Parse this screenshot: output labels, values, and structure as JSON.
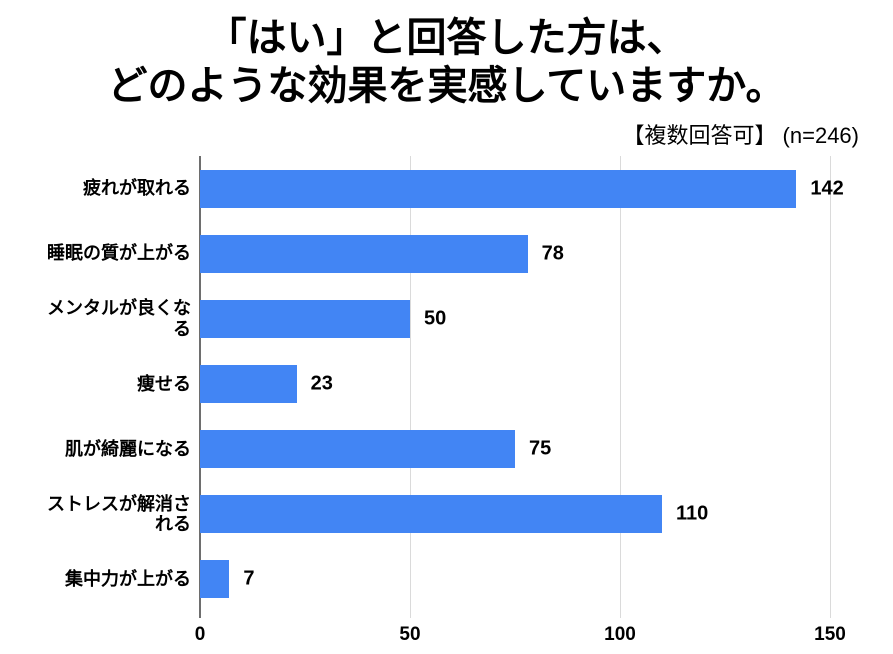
{
  "chart_data": {
    "type": "bar",
    "orientation": "horizontal",
    "title": "「はい」と回答した方は、\nどのような効果を実感していますか。",
    "subtitle": "【複数回答可】 (n=246)",
    "categories": [
      "疲れが取れる",
      "睡眠の質が上がる",
      "メンタルが良くなる",
      "痩せる",
      "肌が綺麗になる",
      "ストレスが解消される",
      "集中力が上がる"
    ],
    "values": [
      142,
      78,
      50,
      23,
      75,
      110,
      7
    ],
    "xlabel": "",
    "ylabel": "",
    "xlim": [
      0,
      150
    ],
    "xticks": [
      0,
      50,
      100,
      150
    ],
    "grid": true,
    "legend_position": "none",
    "bar_color": "#4285F4",
    "axis_line_color": "#6e6e6e",
    "gridline_color": "#dadada",
    "text_color": "#000000",
    "background_color": "#ffffff"
  }
}
